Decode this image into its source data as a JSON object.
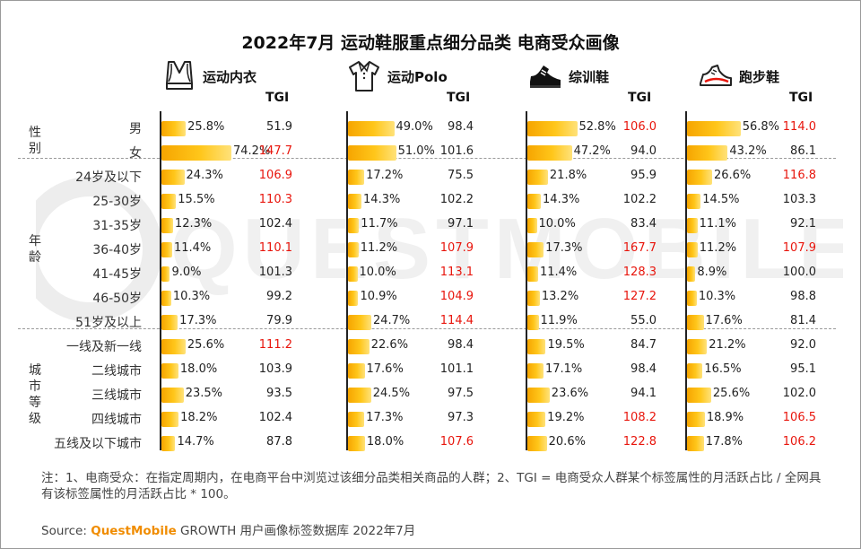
{
  "title": "2022年7月 运动鞋服重点细分品类 电商受众画像",
  "watermark_text": "QUESTMOBILE",
  "tgi_header": "TGI",
  "icons": {
    "运动内衣": "sports-bra-icon",
    "运动Polo": "polo-shirt-icon",
    "综训鞋": "training-shoe-icon",
    "跑步鞋": "running-shoe-icon"
  },
  "colors": {
    "bar_start": "#f6a500",
    "bar_end": "#ffe27a",
    "tgi_high": "#e8150c",
    "brand": "#f08c00"
  },
  "chart_data": {
    "type": "bar",
    "title": "2022年7月 运动鞋服重点细分品类 电商受众画像",
    "unit": "%",
    "groups": [
      {
        "name": "性别",
        "rows": [
          "男",
          "女"
        ]
      },
      {
        "name": "年龄",
        "rows": [
          "24岁及以下",
          "25-30岁",
          "31-35岁",
          "36-40岁",
          "41-45岁",
          "46-50岁",
          "51岁及以上"
        ]
      },
      {
        "name": "城市等级",
        "rows": [
          "一线及新一线",
          "二线城市",
          "三线城市",
          "四线城市",
          "五线及以下城市"
        ]
      }
    ],
    "categories": [
      "男",
      "女",
      "24岁及以下",
      "25-30岁",
      "31-35岁",
      "36-40岁",
      "41-45岁",
      "46-50岁",
      "51岁及以上",
      "一线及新一线",
      "二线城市",
      "三线城市",
      "四线城市",
      "五线及以下城市"
    ],
    "series": [
      {
        "name": "运动内衣",
        "values": [
          25.8,
          74.2,
          24.3,
          15.5,
          12.3,
          11.4,
          9.0,
          10.3,
          17.3,
          25.6,
          18.0,
          23.5,
          18.2,
          14.7
        ],
        "labels": [
          "25.8%",
          "74.2%",
          "24.3%",
          "15.5%",
          "12.3%",
          "11.4%",
          "9.0%",
          "10.3%",
          "17.3%",
          "25.6%",
          "18.0%",
          "23.5%",
          "18.2%",
          "14.7%"
        ],
        "tgi": [
          "51.9",
          "147.7",
          "106.9",
          "110.3",
          "102.4",
          "110.1",
          "101.3",
          "99.2",
          "79.9",
          "111.2",
          "103.9",
          "93.5",
          "102.4",
          "87.8"
        ]
      },
      {
        "name": "运动Polo",
        "values": [
          49.0,
          51.0,
          17.2,
          14.3,
          11.7,
          11.2,
          10.0,
          10.9,
          24.7,
          22.6,
          17.6,
          24.5,
          17.3,
          18.0
        ],
        "labels": [
          "49.0%",
          "51.0%",
          "17.2%",
          "14.3%",
          "11.7%",
          "11.2%",
          "10.0%",
          "10.9%",
          "24.7%",
          "22.6%",
          "17.6%",
          "24.5%",
          "17.3%",
          "18.0%"
        ],
        "tgi": [
          "98.4",
          "101.6",
          "75.5",
          "102.2",
          "97.1",
          "107.9",
          "113.1",
          "104.9",
          "114.4",
          "98.4",
          "101.1",
          "97.5",
          "97.3",
          "107.6"
        ]
      },
      {
        "name": "综训鞋",
        "values": [
          52.8,
          47.2,
          21.8,
          14.3,
          10.0,
          17.3,
          11.4,
          13.2,
          11.9,
          19.5,
          17.1,
          23.6,
          19.2,
          20.6
        ],
        "labels": [
          "52.8%",
          "47.2%",
          "21.8%",
          "14.3%",
          "10.0%",
          "17.3%",
          "11.4%",
          "13.2%",
          "11.9%",
          "19.5%",
          "17.1%",
          "23.6%",
          "19.2%",
          "20.6%"
        ],
        "tgi": [
          "106.0",
          "94.0",
          "95.9",
          "102.2",
          "83.4",
          "167.7",
          "128.3",
          "127.2",
          "55.0",
          "84.7",
          "98.4",
          "94.1",
          "108.2",
          "122.8"
        ]
      },
      {
        "name": "跑步鞋",
        "values": [
          56.8,
          43.2,
          26.6,
          14.5,
          11.1,
          11.2,
          8.9,
          10.3,
          17.6,
          21.2,
          16.5,
          25.6,
          18.9,
          17.8
        ],
        "labels": [
          "56.8%",
          "43.2%",
          "26.6%",
          "14.5%",
          "11.1%",
          "11.2%",
          "8.9%",
          "10.3%",
          "17.6%",
          "21.2%",
          "16.5%",
          "25.6%",
          "18.9%",
          "17.8%"
        ],
        "tgi": [
          "114.0",
          "86.1",
          "116.8",
          "103.3",
          "92.1",
          "107.9",
          "100.0",
          "98.8",
          "81.4",
          "92.0",
          "95.1",
          "102.0",
          "106.5",
          "106.2"
        ]
      }
    ],
    "tgi_highlight_threshold": 104.9
  },
  "note": "注：1、电商受众：在指定周期内，在电商平台中浏览过该细分品类相关商品的人群；2、TGI = 电商受众人群某个标签属性的月活跃占比 / 全网具有该标签属性的月活跃占比 * 100。",
  "source": {
    "prefix": "Source: ",
    "brand": "QuestMobile",
    "suffix": " GROWTH 用户画像标签数据库 2022年7月"
  }
}
